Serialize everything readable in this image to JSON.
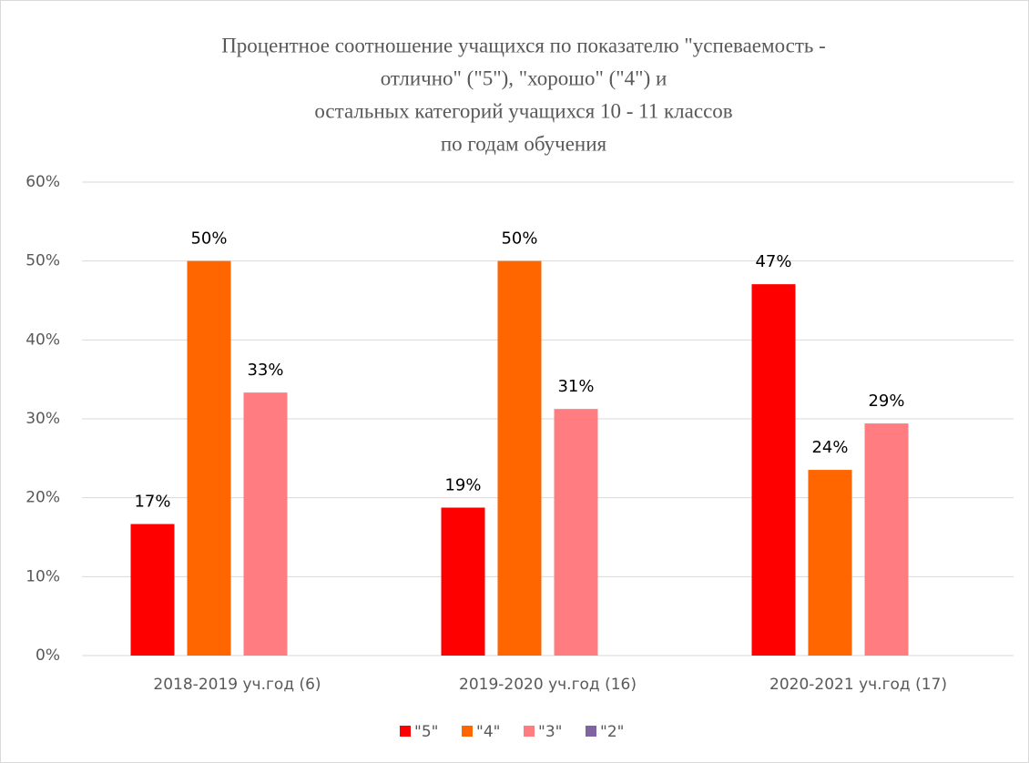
{
  "chart_data": {
    "type": "bar",
    "title": [
      "Процентное соотношение учащихся по показателю \"успеваемость -",
      "отлично\" (\"5\"), \"хорошо\" (\"4\") и",
      "остальных категорий учащихся 10 - 11 классов",
      "по годам обучения"
    ],
    "categories": [
      "2018-2019 уч.год (6)",
      "2019-2020 уч.год (16)",
      "2020-2021 уч.год (17)"
    ],
    "series": [
      {
        "name": "\"5\"",
        "color": "#ff0000",
        "values": [
          16.67,
          18.75,
          47.06
        ],
        "value_labels": [
          "17%",
          "19%",
          "47%"
        ]
      },
      {
        "name": "\"4\"",
        "color": "#ff6600",
        "values": [
          50,
          50,
          23.53
        ],
        "value_labels": [
          "50%",
          "50%",
          "24%"
        ]
      },
      {
        "name": "\"3\"",
        "color": "#ff7c80",
        "values": [
          33.33,
          31.25,
          29.41
        ],
        "value_labels": [
          "33%",
          "31%",
          "29%"
        ]
      },
      {
        "name": "\"2\"",
        "color": "#8064a2",
        "values": [
          0,
          0,
          0
        ]
      }
    ],
    "ylim": [
      0,
      60
    ],
    "yticks": [
      {
        "value": 0,
        "label": "0%"
      },
      {
        "value": 10,
        "label": "10%"
      },
      {
        "value": 20,
        "label": "20%"
      },
      {
        "value": 30,
        "label": "30%"
      },
      {
        "value": 40,
        "label": "40%"
      },
      {
        "value": 50,
        "label": "50%"
      },
      {
        "value": 60,
        "label": "60%"
      }
    ],
    "grid": true,
    "legend": "bottom"
  }
}
